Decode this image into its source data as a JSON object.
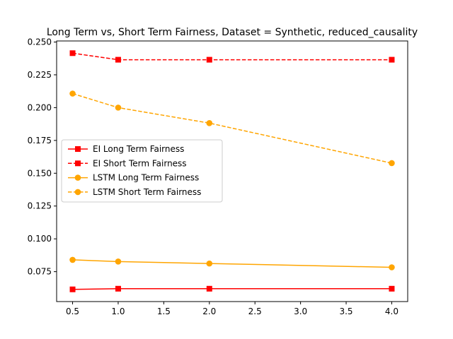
{
  "chart_data": {
    "type": "line",
    "title": "Long Term vs, Short Term Fairness, Dataset = Synthetic, reduced_causality",
    "xlabel": "",
    "ylabel": "",
    "x": [
      0.5,
      1.0,
      2.0,
      4.0
    ],
    "xlim": [
      0.325,
      4.175
    ],
    "ylim": [
      0.0522,
      0.2508
    ],
    "xticks": [
      0.5,
      1.0,
      1.5,
      2.0,
      2.5,
      3.0,
      3.5,
      4.0
    ],
    "xtick_labels": [
      "0.5",
      "1.0",
      "1.5",
      "2.0",
      "2.5",
      "3.0",
      "3.5",
      "4.0"
    ],
    "yticks": [
      0.075,
      0.1,
      0.125,
      0.15,
      0.175,
      0.2,
      0.225,
      0.25
    ],
    "ytick_labels": [
      "0.075",
      "0.100",
      "0.125",
      "0.150",
      "0.175",
      "0.200",
      "0.225",
      "0.250"
    ],
    "grid": false,
    "legend_position": "center-left",
    "series": [
      {
        "name": "EI Long Term Fairness",
        "values": [
          0.0615,
          0.062,
          0.062,
          0.062
        ],
        "color": "#ff0000",
        "linestyle": "solid",
        "marker": "square"
      },
      {
        "name": "EI Short Term Fairness",
        "values": [
          0.2415,
          0.2365,
          0.2365,
          0.2365
        ],
        "color": "#ff0000",
        "linestyle": "dashed",
        "marker": "square"
      },
      {
        "name": "LSTM Long Term Fairness",
        "values": [
          0.084,
          0.0827,
          0.0812,
          0.0783
        ],
        "color": "#ffa500",
        "linestyle": "solid",
        "marker": "circle"
      },
      {
        "name": "LSTM Short Term Fairness",
        "values": [
          0.2107,
          0.2,
          0.1882,
          0.1577
        ],
        "color": "#ffa500",
        "linestyle": "dashed",
        "marker": "circle"
      }
    ]
  }
}
